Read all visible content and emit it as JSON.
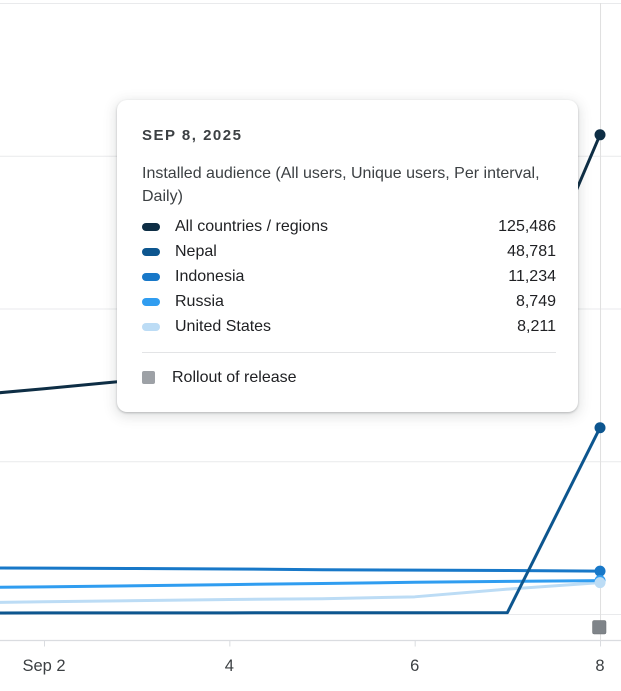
{
  "tooltip": {
    "date": "SEP 8, 2025",
    "metric": "Installed audience (All users, Unique users, Per interval, Daily)",
    "rows": [
      {
        "label": "All countries / regions",
        "value": "125,486",
        "color": "#0e2e45"
      },
      {
        "label": "Nepal",
        "value": "48,781",
        "color": "#0d568f"
      },
      {
        "label": "Indonesia",
        "value": "11,234",
        "color": "#1878c8"
      },
      {
        "label": "Russia",
        "value": "8,749",
        "color": "#309df0"
      },
      {
        "label": "United States",
        "value": "8,211",
        "color": "#bcdcf5"
      }
    ],
    "rollout": {
      "label": "Rollout of release",
      "color": "#9da1a6"
    }
  },
  "chart_data": {
    "type": "line",
    "title": "Installed audience (All users, Unique users, Per interval, Daily)",
    "x_unit": "day of September 2025",
    "x": [
      1,
      2,
      3,
      4,
      5,
      6,
      7,
      8
    ],
    "x_tick_labels": [
      {
        "day": 2,
        "label": "Sep 2"
      },
      {
        "day": 4,
        "label": "4"
      },
      {
        "day": 6,
        "label": "6"
      },
      {
        "day": 8,
        "label": "8"
      }
    ],
    "ylim": [
      0,
      160000
    ],
    "y_gridline_step": 40000,
    "grid": true,
    "legend_position": "tooltip",
    "hover_day": 8,
    "series": [
      {
        "name": "All countries / regions",
        "color": "#0e2e45",
        "values": [
          56800,
          59000,
          61300,
          63400,
          65500,
          67000,
          68700,
          125486
        ]
      },
      {
        "name": "Nepal",
        "color": "#0d568f",
        "values": [
          250,
          280,
          300,
          310,
          320,
          330,
          350,
          48781
        ]
      },
      {
        "name": "Indonesia",
        "color": "#1878c8",
        "values": [
          12100,
          12000,
          11900,
          11800,
          11600,
          11500,
          11400,
          11234
        ]
      },
      {
        "name": "Russia",
        "color": "#309df0",
        "values": [
          6900,
          7100,
          7400,
          7700,
          8000,
          8300,
          8550,
          8749
        ]
      },
      {
        "name": "United States",
        "color": "#bcdcf5",
        "values": [
          2900,
          3200,
          3500,
          3800,
          4000,
          4500,
          6500,
          8211
        ]
      }
    ],
    "annotations": [
      {
        "type": "rollout_of_release",
        "day": 8,
        "color": "#7f8489"
      }
    ]
  }
}
